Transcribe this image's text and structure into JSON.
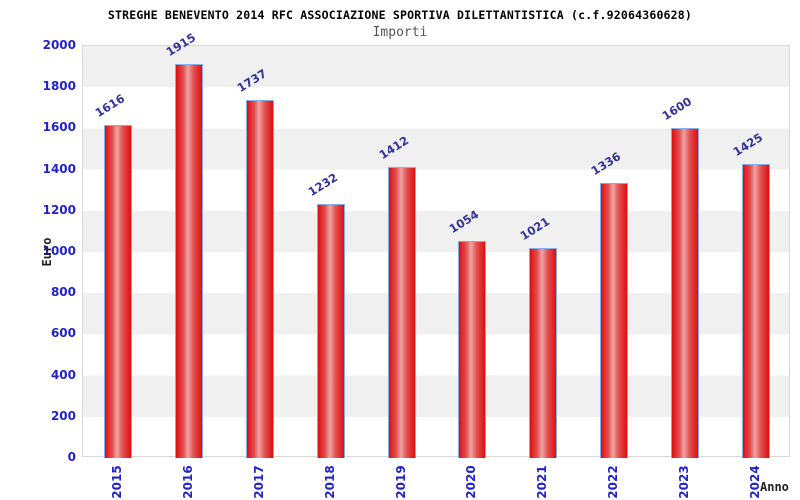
{
  "header": {
    "title": "STREGHE BENEVENTO 2014 RFC ASSOCIAZIONE SPORTIVA DILETTANTISTICA (c.f.92064360628)",
    "subtitle": "Importi"
  },
  "chart_data": {
    "type": "bar",
    "title": "STREGHE BENEVENTO 2014 RFC ASSOCIAZIONE SPORTIVA DILETTANTISTICA (c.f.92064360628)",
    "subtitle": "Importi",
    "categories": [
      "2015",
      "2016",
      "2017",
      "2018",
      "2019",
      "2020",
      "2021",
      "2022",
      "2023",
      "2024"
    ],
    "values": [
      1616,
      1915,
      1737,
      1232,
      1412,
      1054,
      1021,
      1336,
      1600,
      1425
    ],
    "xlabel": "Anno",
    "ylabel": "Euro",
    "ylim": [
      0,
      2000
    ],
    "ytick_step": 200,
    "grid": "alternating-horizontal-bands",
    "legend": "none",
    "bar_value_labels_rotated": true
  },
  "colors": {
    "tick_label_blue": "#2222cc",
    "value_label_blue": "#32329b",
    "bar_red": "#dc1010",
    "bar_highlight": "#eda4a4",
    "bar_border": "#85abe8",
    "band_gray": "#f0f0f0",
    "title_black": "#000000",
    "subtitle_gray": "#555555"
  }
}
